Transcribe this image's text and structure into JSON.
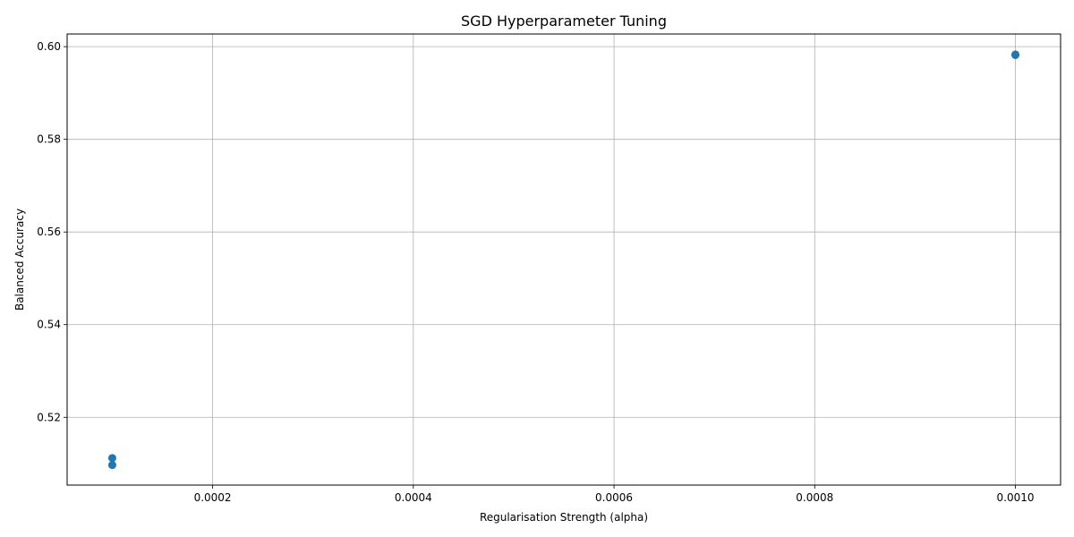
{
  "chart_data": {
    "type": "scatter",
    "title": "SGD Hyperparameter Tuning",
    "xlabel": "Regularisation Strength (alpha)",
    "ylabel": "Balanced Accuracy",
    "xlim": [
      5.5e-05,
      0.001045
    ],
    "ylim": [
      0.50537,
      0.60273
    ],
    "xticks": [
      0.0002,
      0.0004,
      0.0006,
      0.0008,
      0.001
    ],
    "xtick_labels": [
      "0.0002",
      "0.0004",
      "0.0006",
      "0.0008",
      "0.0010"
    ],
    "yticks": [
      0.52,
      0.54,
      0.56,
      0.58,
      0.6
    ],
    "ytick_labels": [
      "0.52",
      "0.54",
      "0.56",
      "0.58",
      "0.60"
    ],
    "grid": true,
    "marker_color": "#1f77b4",
    "points": [
      {
        "x": 0.0001,
        "y": 0.5112
      },
      {
        "x": 0.0001,
        "y": 0.5097
      },
      {
        "x": 0.001,
        "y": 0.5982
      },
      {
        "x": 0.001,
        "y": 0.5983
      }
    ]
  }
}
